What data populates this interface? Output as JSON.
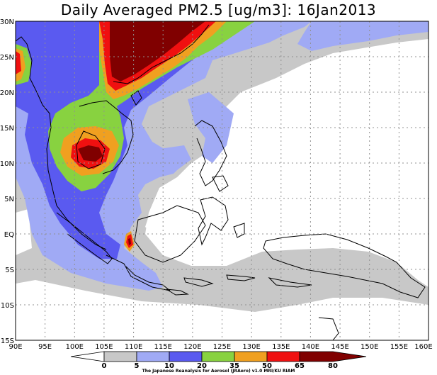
{
  "title": "Daily Averaged PM2.5 [ug/m3]: 16Jan2013",
  "map": {
    "lon_range": [
      90,
      160
    ],
    "lat_range": [
      -15,
      30
    ],
    "lon_ticks": [
      "90E",
      "95E",
      "100E",
      "105E",
      "110E",
      "115E",
      "120E",
      "125E",
      "130E",
      "135E",
      "140E",
      "145E",
      "150E",
      "155E",
      "160E"
    ],
    "lat_ticks": [
      "30N",
      "25N",
      "20N",
      "15N",
      "10N",
      "5N",
      "EQ",
      "5S",
      "10S",
      "15S"
    ],
    "gridlines": true
  },
  "colorbar": {
    "levels": [
      "0",
      "5",
      "10",
      "20",
      "35",
      "50",
      "65",
      "80"
    ],
    "colors": [
      "#ffffff",
      "#c8c8c8",
      "#a0aaf5",
      "#5a5af0",
      "#88d240",
      "#f0a020",
      "#f01010",
      "#800000"
    ]
  },
  "credit": "The Japanese Reanalysis for Aerosol (JRAero) v1.0 MRI/KU RIAM"
}
